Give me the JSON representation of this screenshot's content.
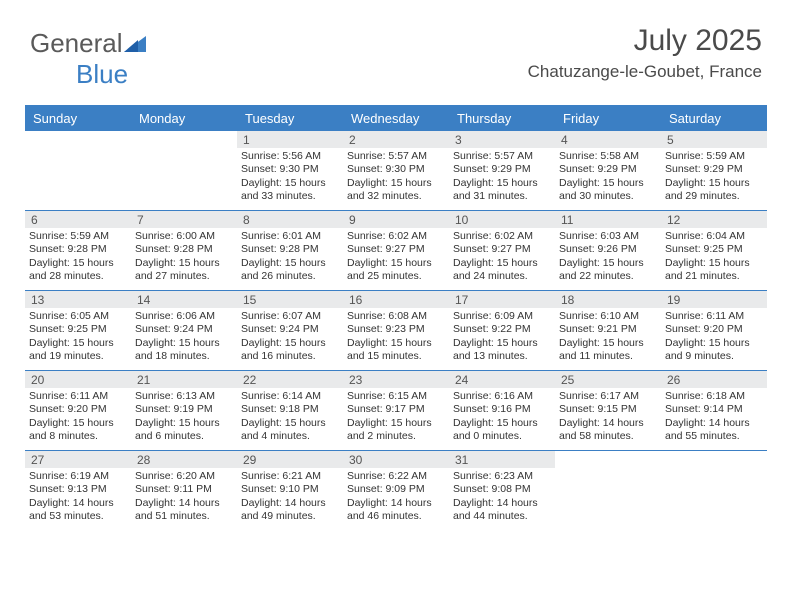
{
  "logo": {
    "part1": "General",
    "part2": "Blue"
  },
  "header": {
    "month_title": "July 2025",
    "location": "Chatuzange-le-Goubet, France"
  },
  "colors": {
    "header_bar": "#3b7fc4",
    "daynum_bg": "#e9eaeb",
    "text": "#333333",
    "logo_gray": "#5a5a5a",
    "logo_blue": "#3b7fc4",
    "background": "#ffffff"
  },
  "typography": {
    "month_title_size": 30,
    "location_size": 17,
    "dow_size": 13,
    "daynum_size": 12,
    "info_size": 10.5
  },
  "calendar": {
    "day_names": [
      "Sunday",
      "Monday",
      "Tuesday",
      "Wednesday",
      "Thursday",
      "Friday",
      "Saturday"
    ],
    "weeks": [
      [
        {
          "n": "",
          "sunrise": "",
          "sunset": "",
          "daylight": ""
        },
        {
          "n": "",
          "sunrise": "",
          "sunset": "",
          "daylight": ""
        },
        {
          "n": "1",
          "sunrise": "Sunrise: 5:56 AM",
          "sunset": "Sunset: 9:30 PM",
          "daylight": "Daylight: 15 hours and 33 minutes."
        },
        {
          "n": "2",
          "sunrise": "Sunrise: 5:57 AM",
          "sunset": "Sunset: 9:30 PM",
          "daylight": "Daylight: 15 hours and 32 minutes."
        },
        {
          "n": "3",
          "sunrise": "Sunrise: 5:57 AM",
          "sunset": "Sunset: 9:29 PM",
          "daylight": "Daylight: 15 hours and 31 minutes."
        },
        {
          "n": "4",
          "sunrise": "Sunrise: 5:58 AM",
          "sunset": "Sunset: 9:29 PM",
          "daylight": "Daylight: 15 hours and 30 minutes."
        },
        {
          "n": "5",
          "sunrise": "Sunrise: 5:59 AM",
          "sunset": "Sunset: 9:29 PM",
          "daylight": "Daylight: 15 hours and 29 minutes."
        }
      ],
      [
        {
          "n": "6",
          "sunrise": "Sunrise: 5:59 AM",
          "sunset": "Sunset: 9:28 PM",
          "daylight": "Daylight: 15 hours and 28 minutes."
        },
        {
          "n": "7",
          "sunrise": "Sunrise: 6:00 AM",
          "sunset": "Sunset: 9:28 PM",
          "daylight": "Daylight: 15 hours and 27 minutes."
        },
        {
          "n": "8",
          "sunrise": "Sunrise: 6:01 AM",
          "sunset": "Sunset: 9:28 PM",
          "daylight": "Daylight: 15 hours and 26 minutes."
        },
        {
          "n": "9",
          "sunrise": "Sunrise: 6:02 AM",
          "sunset": "Sunset: 9:27 PM",
          "daylight": "Daylight: 15 hours and 25 minutes."
        },
        {
          "n": "10",
          "sunrise": "Sunrise: 6:02 AM",
          "sunset": "Sunset: 9:27 PM",
          "daylight": "Daylight: 15 hours and 24 minutes."
        },
        {
          "n": "11",
          "sunrise": "Sunrise: 6:03 AM",
          "sunset": "Sunset: 9:26 PM",
          "daylight": "Daylight: 15 hours and 22 minutes."
        },
        {
          "n": "12",
          "sunrise": "Sunrise: 6:04 AM",
          "sunset": "Sunset: 9:25 PM",
          "daylight": "Daylight: 15 hours and 21 minutes."
        }
      ],
      [
        {
          "n": "13",
          "sunrise": "Sunrise: 6:05 AM",
          "sunset": "Sunset: 9:25 PM",
          "daylight": "Daylight: 15 hours and 19 minutes."
        },
        {
          "n": "14",
          "sunrise": "Sunrise: 6:06 AM",
          "sunset": "Sunset: 9:24 PM",
          "daylight": "Daylight: 15 hours and 18 minutes."
        },
        {
          "n": "15",
          "sunrise": "Sunrise: 6:07 AM",
          "sunset": "Sunset: 9:24 PM",
          "daylight": "Daylight: 15 hours and 16 minutes."
        },
        {
          "n": "16",
          "sunrise": "Sunrise: 6:08 AM",
          "sunset": "Sunset: 9:23 PM",
          "daylight": "Daylight: 15 hours and 15 minutes."
        },
        {
          "n": "17",
          "sunrise": "Sunrise: 6:09 AM",
          "sunset": "Sunset: 9:22 PM",
          "daylight": "Daylight: 15 hours and 13 minutes."
        },
        {
          "n": "18",
          "sunrise": "Sunrise: 6:10 AM",
          "sunset": "Sunset: 9:21 PM",
          "daylight": "Daylight: 15 hours and 11 minutes."
        },
        {
          "n": "19",
          "sunrise": "Sunrise: 6:11 AM",
          "sunset": "Sunset: 9:20 PM",
          "daylight": "Daylight: 15 hours and 9 minutes."
        }
      ],
      [
        {
          "n": "20",
          "sunrise": "Sunrise: 6:11 AM",
          "sunset": "Sunset: 9:20 PM",
          "daylight": "Daylight: 15 hours and 8 minutes."
        },
        {
          "n": "21",
          "sunrise": "Sunrise: 6:13 AM",
          "sunset": "Sunset: 9:19 PM",
          "daylight": "Daylight: 15 hours and 6 minutes."
        },
        {
          "n": "22",
          "sunrise": "Sunrise: 6:14 AM",
          "sunset": "Sunset: 9:18 PM",
          "daylight": "Daylight: 15 hours and 4 minutes."
        },
        {
          "n": "23",
          "sunrise": "Sunrise: 6:15 AM",
          "sunset": "Sunset: 9:17 PM",
          "daylight": "Daylight: 15 hours and 2 minutes."
        },
        {
          "n": "24",
          "sunrise": "Sunrise: 6:16 AM",
          "sunset": "Sunset: 9:16 PM",
          "daylight": "Daylight: 15 hours and 0 minutes."
        },
        {
          "n": "25",
          "sunrise": "Sunrise: 6:17 AM",
          "sunset": "Sunset: 9:15 PM",
          "daylight": "Daylight: 14 hours and 58 minutes."
        },
        {
          "n": "26",
          "sunrise": "Sunrise: 6:18 AM",
          "sunset": "Sunset: 9:14 PM",
          "daylight": "Daylight: 14 hours and 55 minutes."
        }
      ],
      [
        {
          "n": "27",
          "sunrise": "Sunrise: 6:19 AM",
          "sunset": "Sunset: 9:13 PM",
          "daylight": "Daylight: 14 hours and 53 minutes."
        },
        {
          "n": "28",
          "sunrise": "Sunrise: 6:20 AM",
          "sunset": "Sunset: 9:11 PM",
          "daylight": "Daylight: 14 hours and 51 minutes."
        },
        {
          "n": "29",
          "sunrise": "Sunrise: 6:21 AM",
          "sunset": "Sunset: 9:10 PM",
          "daylight": "Daylight: 14 hours and 49 minutes."
        },
        {
          "n": "30",
          "sunrise": "Sunrise: 6:22 AM",
          "sunset": "Sunset: 9:09 PM",
          "daylight": "Daylight: 14 hours and 46 minutes."
        },
        {
          "n": "31",
          "sunrise": "Sunrise: 6:23 AM",
          "sunset": "Sunset: 9:08 PM",
          "daylight": "Daylight: 14 hours and 44 minutes."
        },
        {
          "n": "",
          "sunrise": "",
          "sunset": "",
          "daylight": ""
        },
        {
          "n": "",
          "sunrise": "",
          "sunset": "",
          "daylight": ""
        }
      ]
    ]
  }
}
